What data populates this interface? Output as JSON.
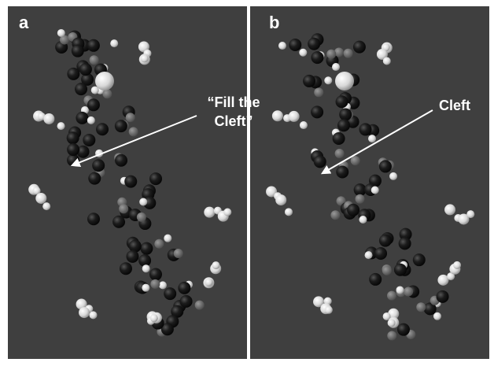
{
  "panels": [
    {
      "label": "a",
      "annotation": [
        "“Fill the",
        "Cleft”"
      ]
    },
    {
      "label": "b",
      "annotation": [
        "Cleft"
      ]
    }
  ]
}
